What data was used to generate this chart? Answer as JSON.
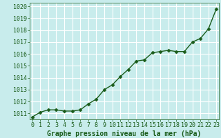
{
  "x": [
    0,
    1,
    2,
    3,
    4,
    5,
    6,
    7,
    8,
    9,
    10,
    11,
    12,
    13,
    14,
    15,
    16,
    17,
    18,
    19,
    20,
    21,
    22,
    23
  ],
  "y": [
    1010.7,
    1011.1,
    1011.3,
    1011.3,
    1011.2,
    1011.2,
    1011.3,
    1011.8,
    1012.2,
    1013.0,
    1013.4,
    1014.1,
    1014.7,
    1015.4,
    1015.5,
    1016.1,
    1016.2,
    1016.3,
    1016.2,
    1016.2,
    1017.0,
    1017.3,
    1018.1,
    1019.8
  ],
  "line_color": "#1a5c1a",
  "marker": "D",
  "marker_size": 2.5,
  "line_width": 1.0,
  "bg_color": "#c8ecec",
  "grid_color": "#ffffff",
  "xlabel": "Graphe pression niveau de la mer (hPa)",
  "xlabel_fontsize": 7,
  "xlabel_color": "#1a5c1a",
  "tick_color": "#1a5c1a",
  "tick_fontsize": 6,
  "ylim": [
    1010.5,
    1020.3
  ],
  "yticks": [
    1011,
    1012,
    1013,
    1014,
    1015,
    1016,
    1017,
    1018,
    1019,
    1020
  ],
  "xlim": [
    -0.3,
    23.3
  ],
  "xticks": [
    0,
    1,
    2,
    3,
    4,
    5,
    6,
    7,
    8,
    9,
    10,
    11,
    12,
    13,
    14,
    15,
    16,
    17,
    18,
    19,
    20,
    21,
    22,
    23
  ]
}
